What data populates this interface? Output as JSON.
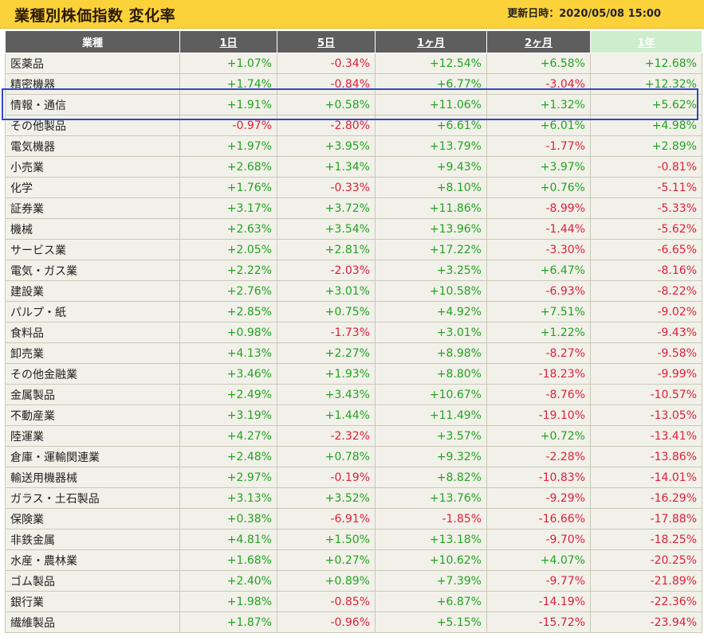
{
  "header": {
    "title": "業種別株価指数 変化率",
    "updated": "更新日時：2020/05/08 15:00"
  },
  "table": {
    "columns": [
      "業種",
      "1日",
      "5日",
      "1ヶ月",
      "2ヶ月",
      "1年"
    ],
    "active_column": "1年",
    "highlighted_row": "情報・通信",
    "rows": [
      {
        "name": "医薬品",
        "d1": "+1.07%",
        "d5": "-0.34%",
        "m1": "+12.54%",
        "m2": "+6.58%",
        "y1": "+12.68%"
      },
      {
        "name": "精密機器",
        "d1": "+1.74%",
        "d5": "-0.84%",
        "m1": "+6.77%",
        "m2": "-3.04%",
        "y1": "+12.32%"
      },
      {
        "name": "情報・通信",
        "d1": "+1.91%",
        "d5": "+0.58%",
        "m1": "+11.06%",
        "m2": "+1.32%",
        "y1": "+5.62%"
      },
      {
        "name": "その他製品",
        "d1": "-0.97%",
        "d5": "-2.80%",
        "m1": "+6.61%",
        "m2": "+6.01%",
        "y1": "+4.98%"
      },
      {
        "name": "電気機器",
        "d1": "+1.97%",
        "d5": "+3.95%",
        "m1": "+13.79%",
        "m2": "-1.77%",
        "y1": "+2.89%"
      },
      {
        "name": "小売業",
        "d1": "+2.68%",
        "d5": "+1.34%",
        "m1": "+9.43%",
        "m2": "+3.97%",
        "y1": "-0.81%"
      },
      {
        "name": "化学",
        "d1": "+1.76%",
        "d5": "-0.33%",
        "m1": "+8.10%",
        "m2": "+0.76%",
        "y1": "-5.11%"
      },
      {
        "name": "証券業",
        "d1": "+3.17%",
        "d5": "+3.72%",
        "m1": "+11.86%",
        "m2": "-8.99%",
        "y1": "-5.33%"
      },
      {
        "name": "機械",
        "d1": "+2.63%",
        "d5": "+3.54%",
        "m1": "+13.96%",
        "m2": "-1.44%",
        "y1": "-5.62%"
      },
      {
        "name": "サービス業",
        "d1": "+2.05%",
        "d5": "+2.81%",
        "m1": "+17.22%",
        "m2": "-3.30%",
        "y1": "-6.65%"
      },
      {
        "name": "電気・ガス業",
        "d1": "+2.22%",
        "d5": "-2.03%",
        "m1": "+3.25%",
        "m2": "+6.47%",
        "y1": "-8.16%"
      },
      {
        "name": "建設業",
        "d1": "+2.76%",
        "d5": "+3.01%",
        "m1": "+10.58%",
        "m2": "-6.93%",
        "y1": "-8.22%"
      },
      {
        "name": "パルプ・紙",
        "d1": "+2.85%",
        "d5": "+0.75%",
        "m1": "+4.92%",
        "m2": "+7.51%",
        "y1": "-9.02%"
      },
      {
        "name": "食料品",
        "d1": "+0.98%",
        "d5": "-1.73%",
        "m1": "+3.01%",
        "m2": "+1.22%",
        "y1": "-9.43%"
      },
      {
        "name": "卸売業",
        "d1": "+4.13%",
        "d5": "+2.27%",
        "m1": "+8.98%",
        "m2": "-8.27%",
        "y1": "-9.58%"
      },
      {
        "name": "その他金融業",
        "d1": "+3.46%",
        "d5": "+1.93%",
        "m1": "+8.80%",
        "m2": "-18.23%",
        "y1": "-9.99%"
      },
      {
        "name": "金属製品",
        "d1": "+2.49%",
        "d5": "+3.43%",
        "m1": "+10.67%",
        "m2": "-8.76%",
        "y1": "-10.57%"
      },
      {
        "name": "不動産業",
        "d1": "+3.19%",
        "d5": "+1.44%",
        "m1": "+11.49%",
        "m2": "-19.10%",
        "y1": "-13.05%"
      },
      {
        "name": "陸運業",
        "d1": "+4.27%",
        "d5": "-2.32%",
        "m1": "+3.57%",
        "m2": "+0.72%",
        "y1": "-13.41%"
      },
      {
        "name": "倉庫・運輸関連業",
        "d1": "+2.48%",
        "d5": "+0.78%",
        "m1": "+9.32%",
        "m2": "-2.28%",
        "y1": "-13.86%"
      },
      {
        "name": "輸送用機器械",
        "d1": "+2.97%",
        "d5": "-0.19%",
        "m1": "+8.82%",
        "m2": "-10.83%",
        "y1": "-14.01%"
      },
      {
        "name": "ガラス・土石製品",
        "d1": "+3.13%",
        "d5": "+3.52%",
        "m1": "+13.76%",
        "m2": "-9.29%",
        "y1": "-16.29%"
      },
      {
        "name": "保険業",
        "d1": "+0.38%",
        "d5": "-6.91%",
        "m1": "-1.85%",
        "m2": "-16.66%",
        "y1": "-17.88%"
      },
      {
        "name": "非鉄金属",
        "d1": "+4.81%",
        "d5": "+1.50%",
        "m1": "+13.18%",
        "m2": "-9.70%",
        "y1": "-18.25%"
      },
      {
        "name": "水産・農林業",
        "d1": "+1.68%",
        "d5": "+0.27%",
        "m1": "+10.62%",
        "m2": "+4.07%",
        "y1": "-20.25%"
      },
      {
        "name": "ゴム製品",
        "d1": "+2.40%",
        "d5": "+0.89%",
        "m1": "+7.39%",
        "m2": "-9.77%",
        "y1": "-21.89%"
      },
      {
        "name": "銀行業",
        "d1": "+1.98%",
        "d5": "-0.85%",
        "m1": "+6.87%",
        "m2": "-14.19%",
        "y1": "-22.36%"
      },
      {
        "name": "繊維製品",
        "d1": "+1.87%",
        "d5": "-0.96%",
        "m1": "+5.15%",
        "m2": "-15.72%",
        "y1": "-23.94%"
      }
    ]
  },
  "colors": {
    "title_bar": "#fcd23a",
    "header_bg": "#5e5e5e",
    "active_header_bg": "#cdeecc",
    "row_bg": "#f2f1e9",
    "positive": "#22a322",
    "negative": "#e01e3a",
    "highlight_border": "#3346c6"
  }
}
